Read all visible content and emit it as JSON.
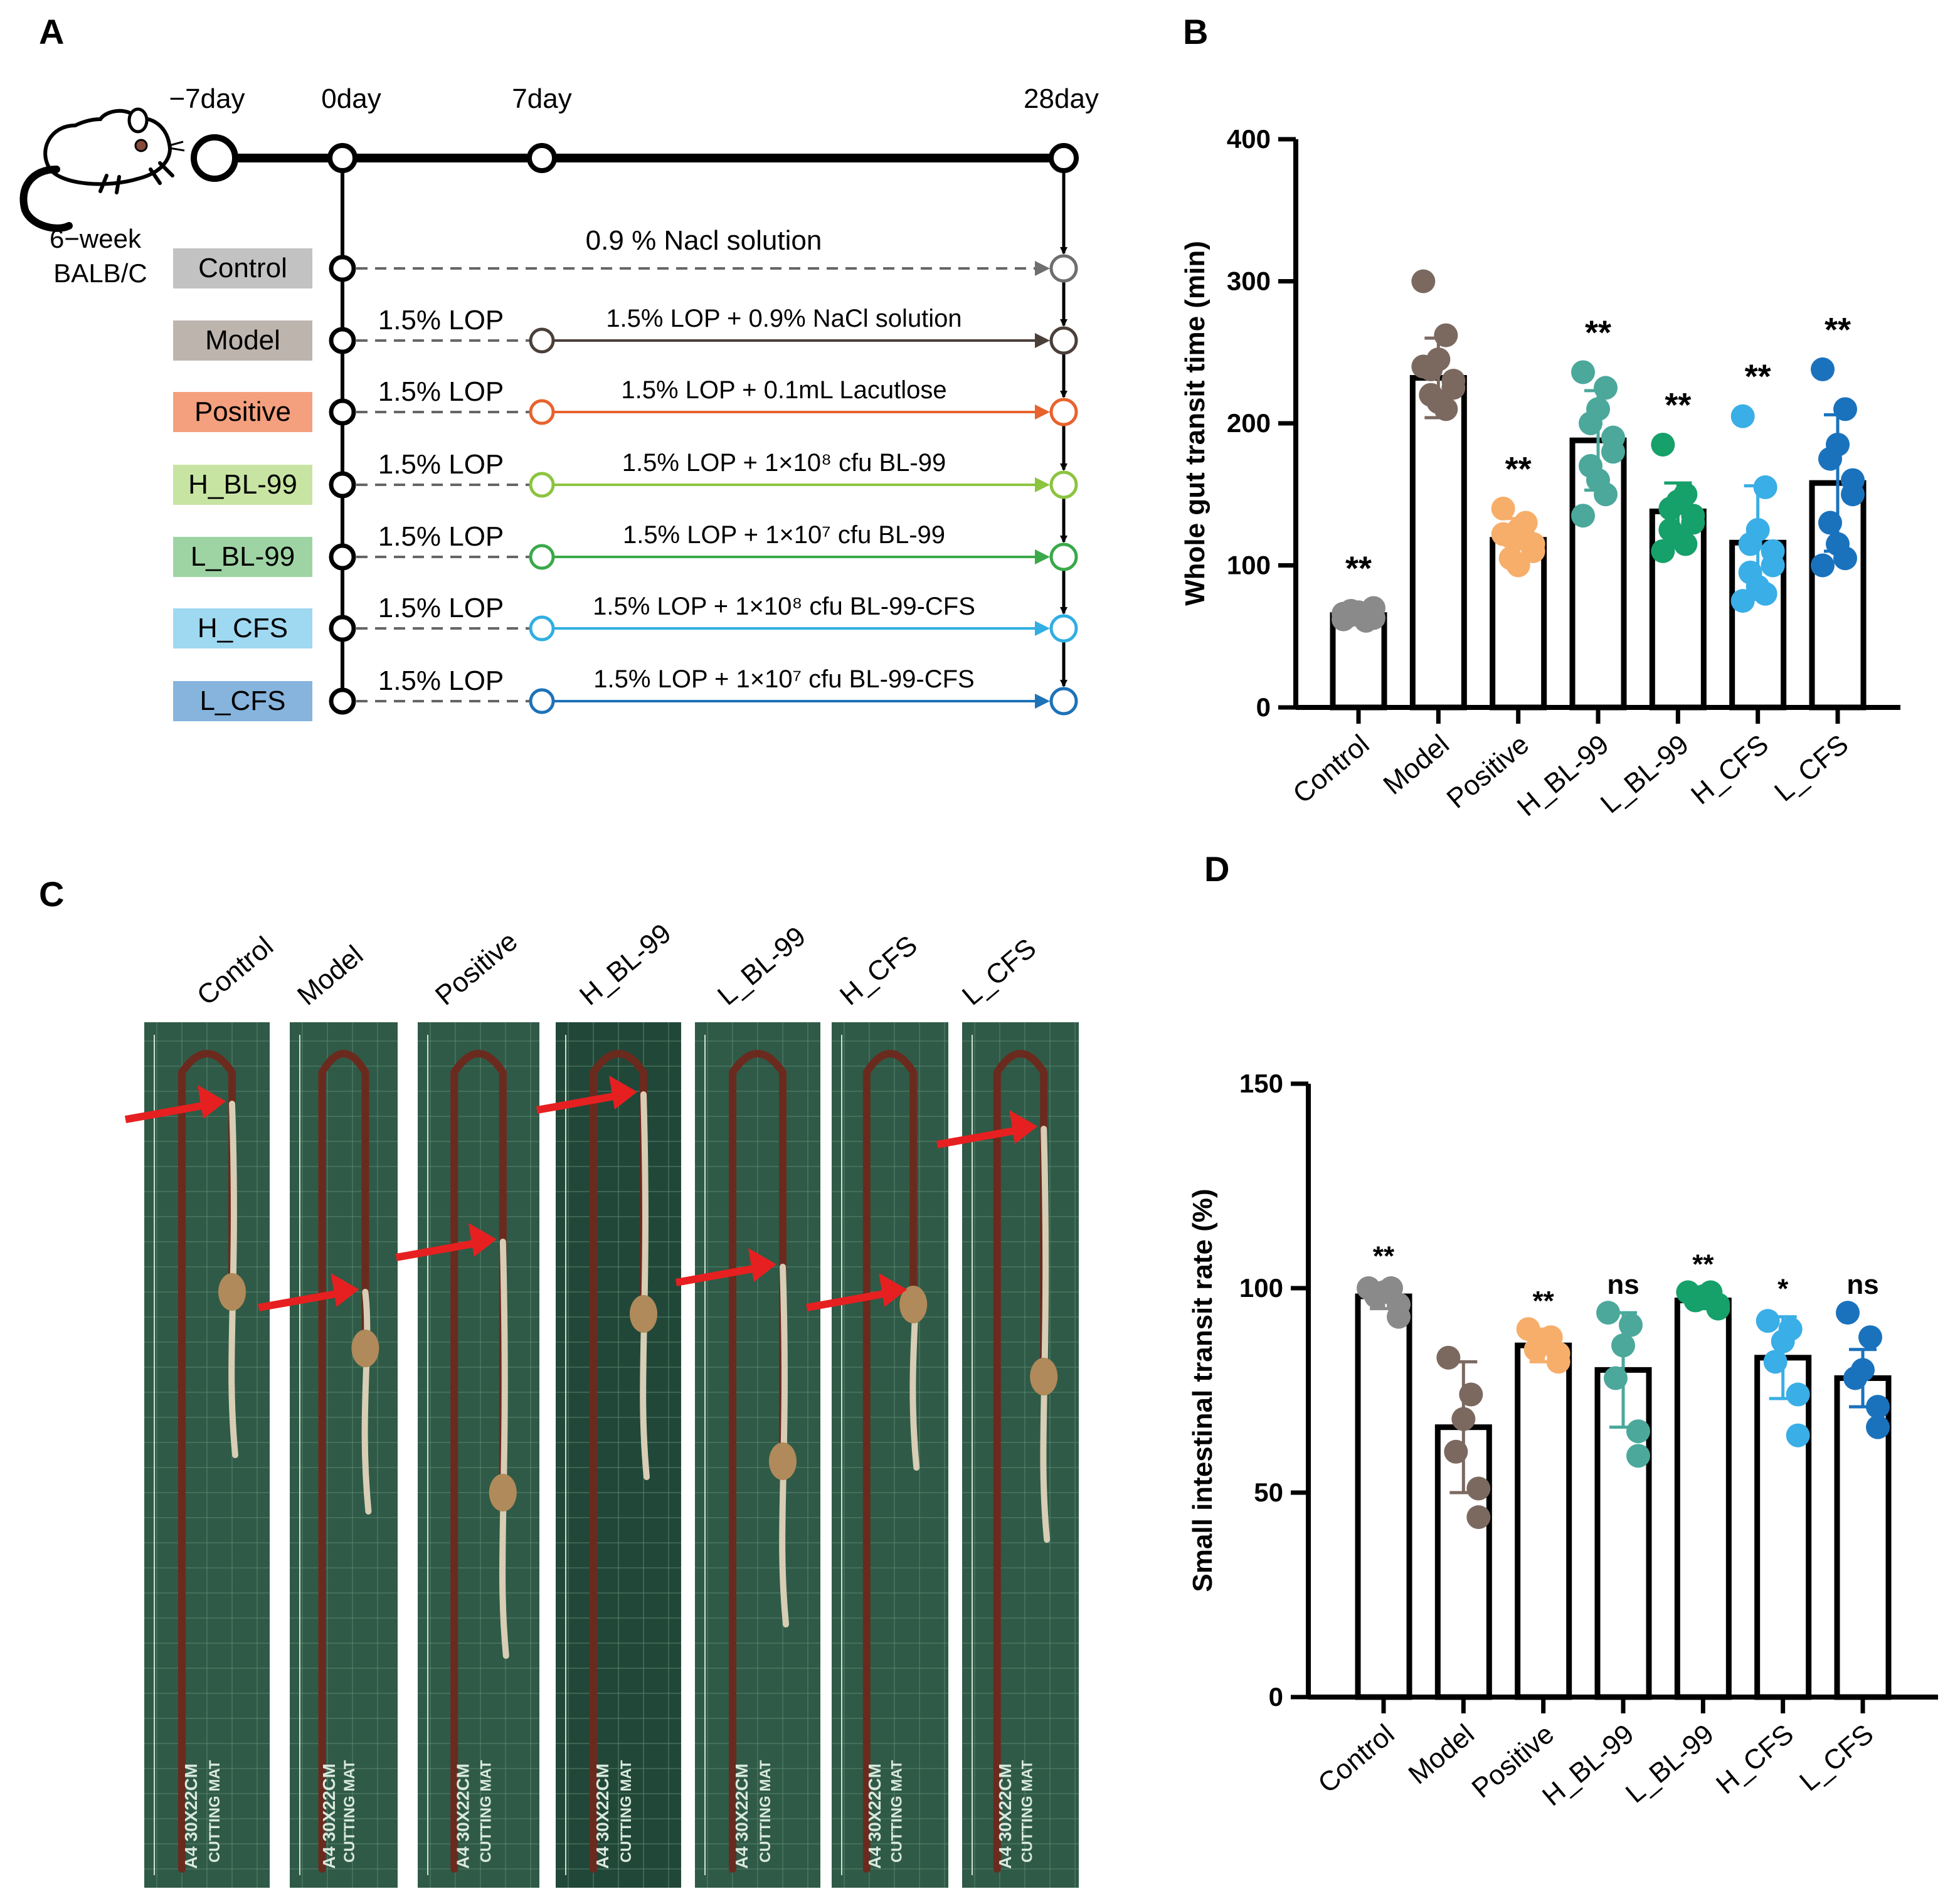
{
  "panels": {
    "a": "A",
    "b": "B",
    "c": "C",
    "d": "D"
  },
  "timeline": {
    "days": [
      "−7day",
      "0day",
      "7day",
      "28day"
    ],
    "animal": [
      "6−week",
      "BALB/C"
    ],
    "groups": [
      {
        "name": "Control",
        "pre": "",
        "treatment": "0.9 % Nacl solution",
        "color": "#6e6e6e",
        "box": "#c2c2c2"
      },
      {
        "name": "Model",
        "pre": "1.5% LOP",
        "treatment": "1.5% LOP + 0.9% NaCl solution",
        "color": "#4b3f3a",
        "box": "#bdb4ae"
      },
      {
        "name": "Positive",
        "pre": "1.5% LOP",
        "treatment": "1.5% LOP + 0.1mL Lacutlose",
        "color": "#e8622d",
        "box": "#f4a07e"
      },
      {
        "name": "H_BL-99",
        "pre": "1.5% LOP",
        "treatment": "1.5% LOP + 1×10⁸ cfu BL-99",
        "color": "#8cc43f",
        "box": "#c8e4a3"
      },
      {
        "name": "L_BL-99",
        "pre": "1.5% LOP",
        "treatment": "1.5% LOP + 1×10⁷ cfu BL-99",
        "color": "#39a94a",
        "box": "#9ed4a4"
      },
      {
        "name": "H_CFS",
        "pre": "1.5% LOP",
        "treatment": "1.5% LOP + 1×10⁸ cfu BL-99-CFS",
        "color": "#31aee2",
        "box": "#9fd8f1"
      },
      {
        "name": "L_CFS",
        "pre": "1.5% LOP",
        "treatment": "1.5% LOP + 1×10⁷ cfu BL-99-CFS",
        "color": "#1d72b8",
        "box": "#86b4dc"
      }
    ]
  },
  "photo": {
    "labels": [
      "Control",
      "Model",
      "Positive",
      "H_BL-99",
      "L_BL-99",
      "H_CFS",
      "L_CFS"
    ],
    "mat_text": "A4 30X22CM",
    "mat_sub": "CUTTING MAT"
  },
  "chart_data": [
    {
      "type": "bar",
      "panel": "B",
      "title": "",
      "xlabel": "",
      "ylabel": "Whole gut transit time (min)",
      "ylim": [
        0,
        400
      ],
      "yticks": [
        0,
        100,
        200,
        300,
        400
      ],
      "categories": [
        "Control",
        "Model",
        "Positive",
        "H_BL-99",
        "L_BL-99",
        "H_CFS",
        "L_CFS"
      ],
      "values": [
        65,
        232,
        118,
        188,
        138,
        116,
        158
      ],
      "errors": [
        5,
        28,
        15,
        35,
        20,
        40,
        48
      ],
      "significance": [
        "**",
        "",
        "**",
        "**",
        "**",
        "**",
        "**"
      ],
      "colors": [
        "#8a8a8a",
        "#7b6960",
        "#f6ae6a",
        "#4ba89b",
        "#16a06a",
        "#3aaee6",
        "#1a72bd"
      ],
      "points": [
        [
          62,
          64,
          66,
          68,
          70,
          63,
          65,
          67,
          61,
          66
        ],
        [
          300,
          262,
          245,
          238,
          230,
          225,
          220,
          215,
          210,
          240
        ],
        [
          140,
          130,
          125,
          120,
          115,
          110,
          105,
          100,
          118,
          122
        ],
        [
          236,
          225,
          210,
          200,
          190,
          180,
          170,
          160,
          150,
          135
        ],
        [
          185,
          150,
          145,
          140,
          135,
          130,
          125,
          120,
          115,
          110
        ],
        [
          205,
          155,
          125,
          115,
          110,
          100,
          95,
          85,
          80,
          75
        ],
        [
          238,
          210,
          185,
          175,
          160,
          150,
          130,
          115,
          105,
          100
        ]
      ]
    },
    {
      "type": "bar",
      "panel": "D",
      "title": "",
      "xlabel": "",
      "ylabel": "Small intestinal transit rate (%)",
      "ylim": [
        0,
        150
      ],
      "yticks": [
        0,
        50,
        100,
        150
      ],
      "categories": [
        "Control",
        "Model",
        "Positive",
        "H_BL-99",
        "L_BL-99",
        "H_CFS",
        "L_CFS"
      ],
      "values": [
        98,
        66,
        86,
        80,
        97,
        83,
        78
      ],
      "errors": [
        3,
        16,
        4,
        14,
        2,
        10,
        7
      ],
      "significance": [
        "**",
        "",
        "**",
        "ns",
        "**",
        "*",
        "ns"
      ],
      "colors": [
        "#8a8a8a",
        "#7b6960",
        "#f6ae6a",
        "#4ba89b",
        "#16a06a",
        "#3aaee6",
        "#1a72bd"
      ],
      "points": [
        [
          100,
          100,
          99,
          98,
          96,
          93
        ],
        [
          83,
          74,
          68,
          60,
          51,
          44
        ],
        [
          90,
          88,
          87,
          85,
          84,
          82
        ],
        [
          94,
          91,
          86,
          78,
          65,
          59
        ],
        [
          99,
          99,
          98,
          97,
          96,
          95
        ],
        [
          92,
          90,
          87,
          82,
          74,
          64
        ],
        [
          94,
          88,
          80,
          78,
          71,
          66
        ]
      ]
    }
  ]
}
